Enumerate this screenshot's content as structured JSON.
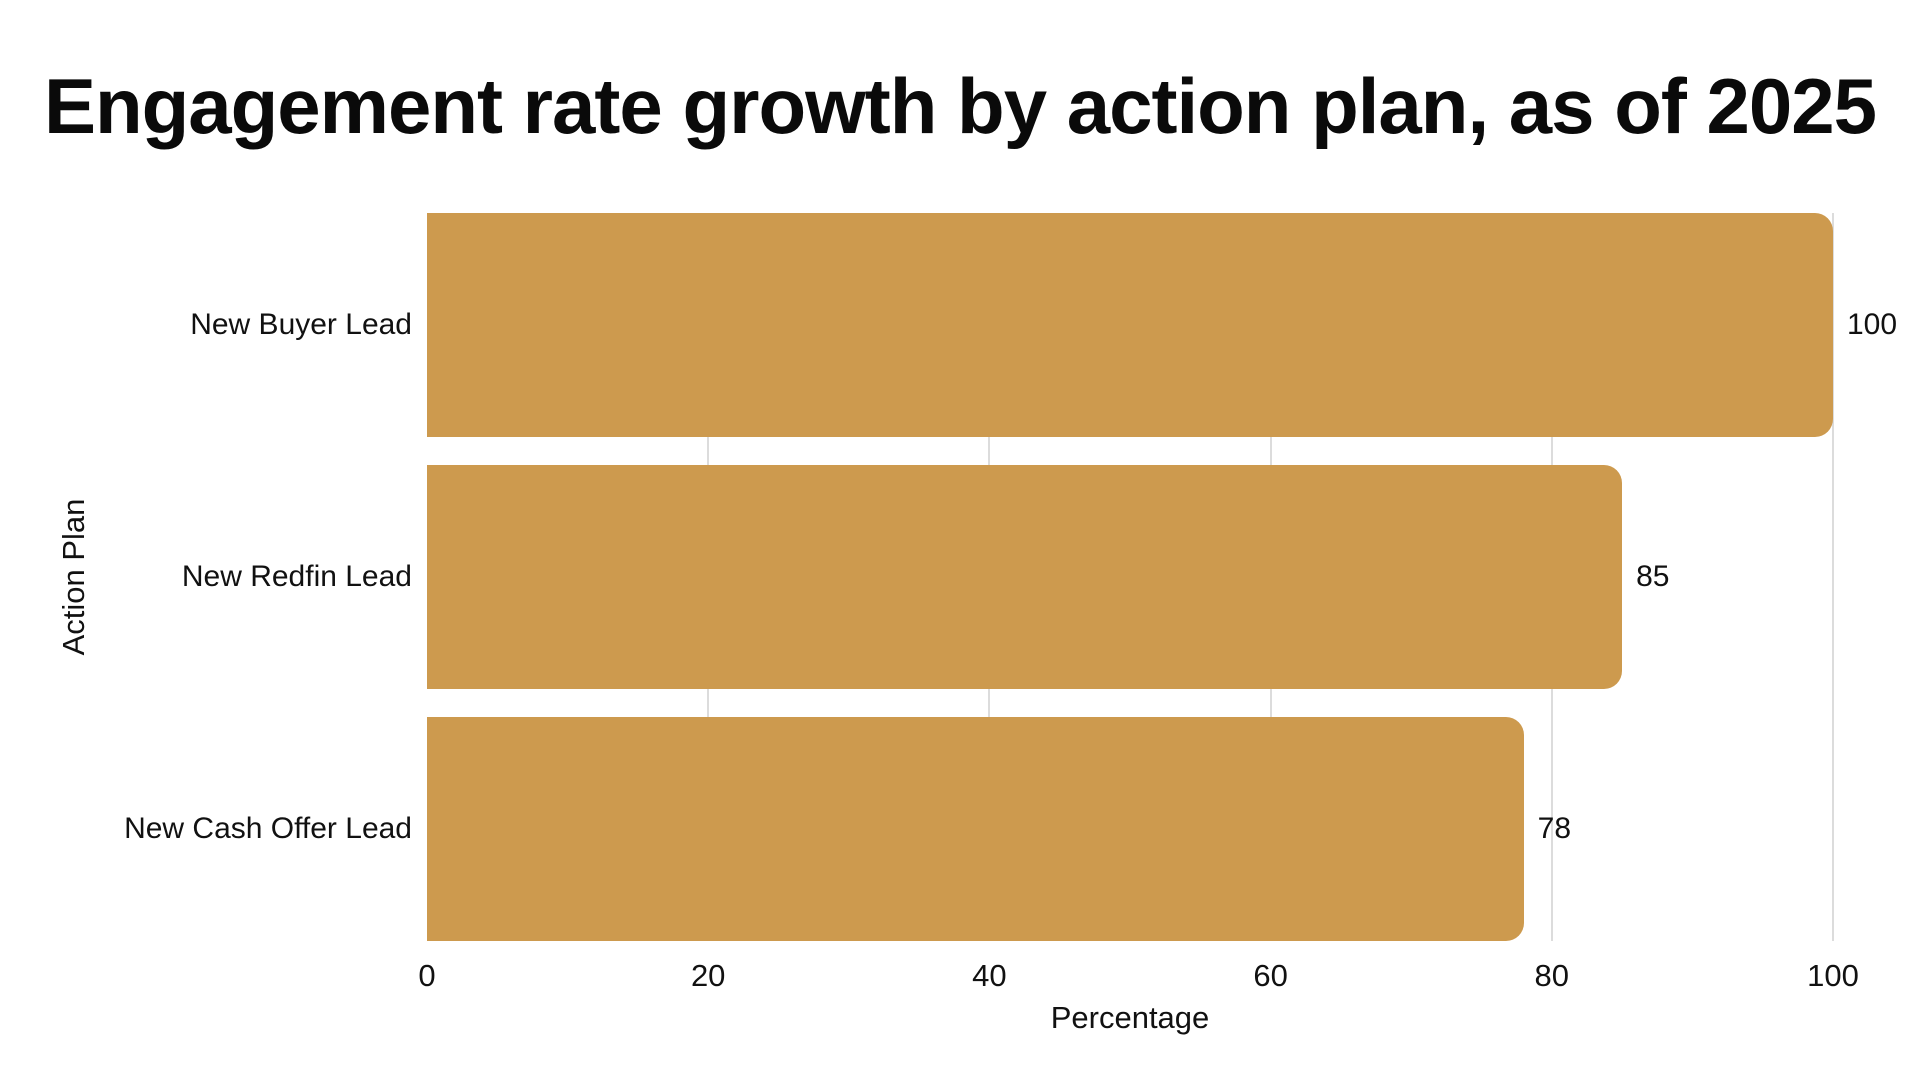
{
  "chart_data": {
    "type": "bar",
    "orientation": "horizontal",
    "title": "Engagement rate growth by action plan, as of 2025",
    "xlabel": "Percentage",
    "ylabel": "Action Plan",
    "categories": [
      "New Buyer Lead",
      "New Redfin Lead",
      "New Cash Offer Lead"
    ],
    "values": [
      100,
      85,
      78
    ],
    "value_labels": [
      "100",
      "85",
      "78"
    ],
    "xlim": [
      0,
      100
    ],
    "xticks": [
      0,
      20,
      40,
      60,
      80,
      100
    ],
    "grid": "vertical-gridlines-on",
    "legend": "none",
    "colors": {
      "bar": "#CD9A4E",
      "gridline": "#DCDCDC",
      "title_text": "#0A0A0A",
      "axis_text": "#111111",
      "background": "#FFFFFF"
    }
  }
}
